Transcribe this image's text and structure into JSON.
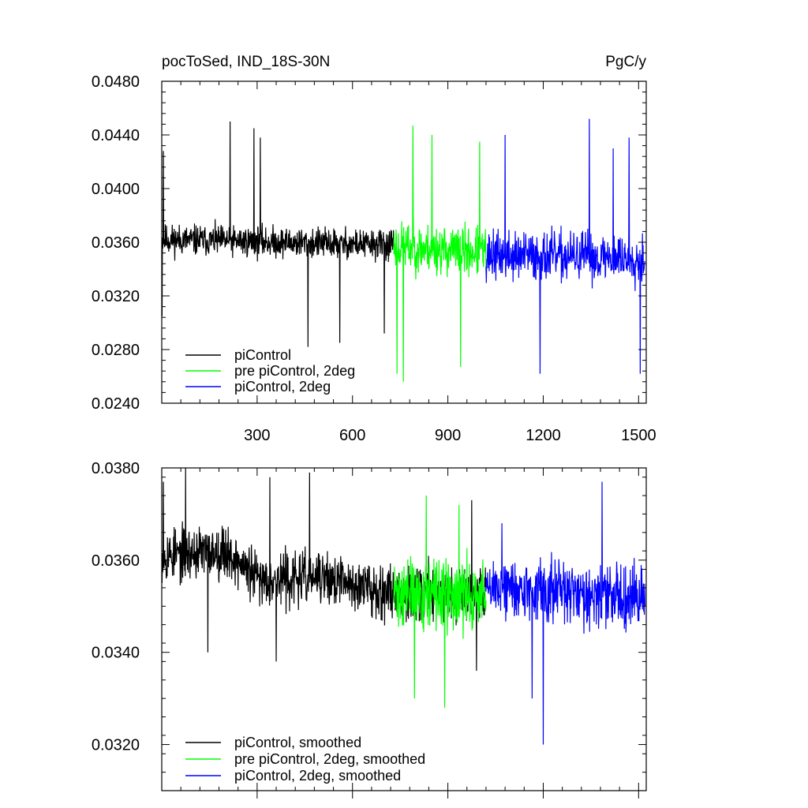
{
  "chart_data": [
    {
      "type": "line",
      "title": "pocToSed, IND_18S-30N",
      "units": "PgC/y",
      "xlim": [
        0,
        1524
      ],
      "ylim": [
        0.024,
        0.048
      ],
      "xticks": [
        300,
        600,
        900,
        1200,
        1500
      ],
      "xtick_labels": [
        "300",
        "600",
        "900",
        "1200",
        "1500"
      ],
      "yticks": [
        0.024,
        0.028,
        0.032,
        0.036,
        0.04,
        0.044,
        0.048
      ],
      "ytick_labels": [
        "0.0240",
        "0.0280",
        "0.0320",
        "0.0360",
        "0.0400",
        "0.0440",
        "0.0480"
      ],
      "legend_position": "bottom-left",
      "series": [
        {
          "name": "piControl",
          "color": "#000000",
          "x_range": [
            1,
            730
          ],
          "noisy": true,
          "seed": 11,
          "mean": [
            [
              1,
              0.0362
            ],
            [
              730,
              0.0358
            ]
          ],
          "amplitude": 0.0017,
          "spikes": [
            [
              1,
              0.0305
            ],
            [
              5,
              0.0428
            ],
            [
              215,
              0.045
            ],
            [
              290,
              0.0445
            ],
            [
              310,
              0.0438
            ],
            [
              460,
              0.0282
            ],
            [
              560,
              0.0285
            ],
            [
              700,
              0.0292
            ]
          ]
        },
        {
          "name": "pre piControl, 2deg",
          "color": "#00ff00",
          "x_range": [
            730,
            1020
          ],
          "noisy": true,
          "seed": 23,
          "mean": [
            [
              730,
              0.0357
            ],
            [
              1020,
              0.0352
            ]
          ],
          "amplitude": 0.0027,
          "spikes": [
            [
              790,
              0.0447
            ],
            [
              740,
              0.0262
            ],
            [
              760,
              0.0256
            ],
            [
              850,
              0.044
            ],
            [
              940,
              0.0267
            ],
            [
              1000,
              0.0435
            ]
          ]
        },
        {
          "name": "piControl, 2deg",
          "color": "#0000ff",
          "x_range": [
            1020,
            1520
          ],
          "noisy": true,
          "seed": 37,
          "mean": [
            [
              1020,
              0.035
            ],
            [
              1520,
              0.0348
            ]
          ],
          "amplitude": 0.0027,
          "spikes": [
            [
              1345,
              0.0452
            ],
            [
              1080,
              0.044
            ],
            [
              1470,
              0.0438
            ],
            [
              1190,
              0.0262
            ],
            [
              1505,
              0.0262
            ],
            [
              1420,
              0.043
            ]
          ]
        }
      ]
    },
    {
      "type": "line",
      "title": "",
      "units": "",
      "xlim": [
        0,
        1524
      ],
      "ylim": [
        0.031,
        0.038
      ],
      "xticks": [
        300,
        600,
        900,
        1200,
        1500
      ],
      "xtick_labels": [],
      "yticks": [
        0.032,
        0.034,
        0.036,
        0.038
      ],
      "ytick_labels": [
        "0.0320",
        "0.0340",
        "0.0360",
        "0.0380"
      ],
      "legend_position": "bottom-left",
      "series": [
        {
          "name": "piControl, smoothed",
          "color": "#000000",
          "x_range": [
            1,
            1020
          ],
          "noisy": true,
          "seed": 53,
          "mean": [
            [
              1,
              0.0361
            ],
            [
              200,
              0.0362
            ],
            [
              300,
              0.0356
            ],
            [
              500,
              0.0356
            ],
            [
              730,
              0.0353
            ],
            [
              1020,
              0.0353
            ]
          ],
          "amplitude": 0.00085,
          "spikes": [
            [
              5,
              0.0377
            ],
            [
              75,
              0.038
            ],
            [
              340,
              0.0378
            ],
            [
              465,
              0.0379
            ],
            [
              145,
              0.034
            ],
            [
              360,
              0.0338
            ],
            [
              990,
              0.0336
            ],
            [
              975,
              0.0373
            ]
          ]
        },
        {
          "name": "pre piControl, 2deg, smoothed",
          "color": "#00ff00",
          "x_range": [
            730,
            1020
          ],
          "noisy": true,
          "seed": 71,
          "mean": [
            [
              730,
              0.0353
            ],
            [
              1020,
              0.0352
            ]
          ],
          "amplitude": 0.0011,
          "spikes": [
            [
              832,
              0.0374
            ],
            [
              795,
              0.033
            ],
            [
              890,
              0.0328
            ],
            [
              935,
              0.0372
            ]
          ]
        },
        {
          "name": "piControl, 2deg, smoothed",
          "color": "#0000ff",
          "x_range": [
            1020,
            1520
          ],
          "noisy": true,
          "seed": 89,
          "mean": [
            [
              1020,
              0.0354
            ],
            [
              1520,
              0.0352
            ]
          ],
          "amplitude": 0.001,
          "spikes": [
            [
              1200,
              0.032
            ],
            [
              1385,
              0.0377
            ],
            [
              1070,
              0.0368
            ],
            [
              1165,
              0.033
            ]
          ]
        }
      ]
    }
  ]
}
